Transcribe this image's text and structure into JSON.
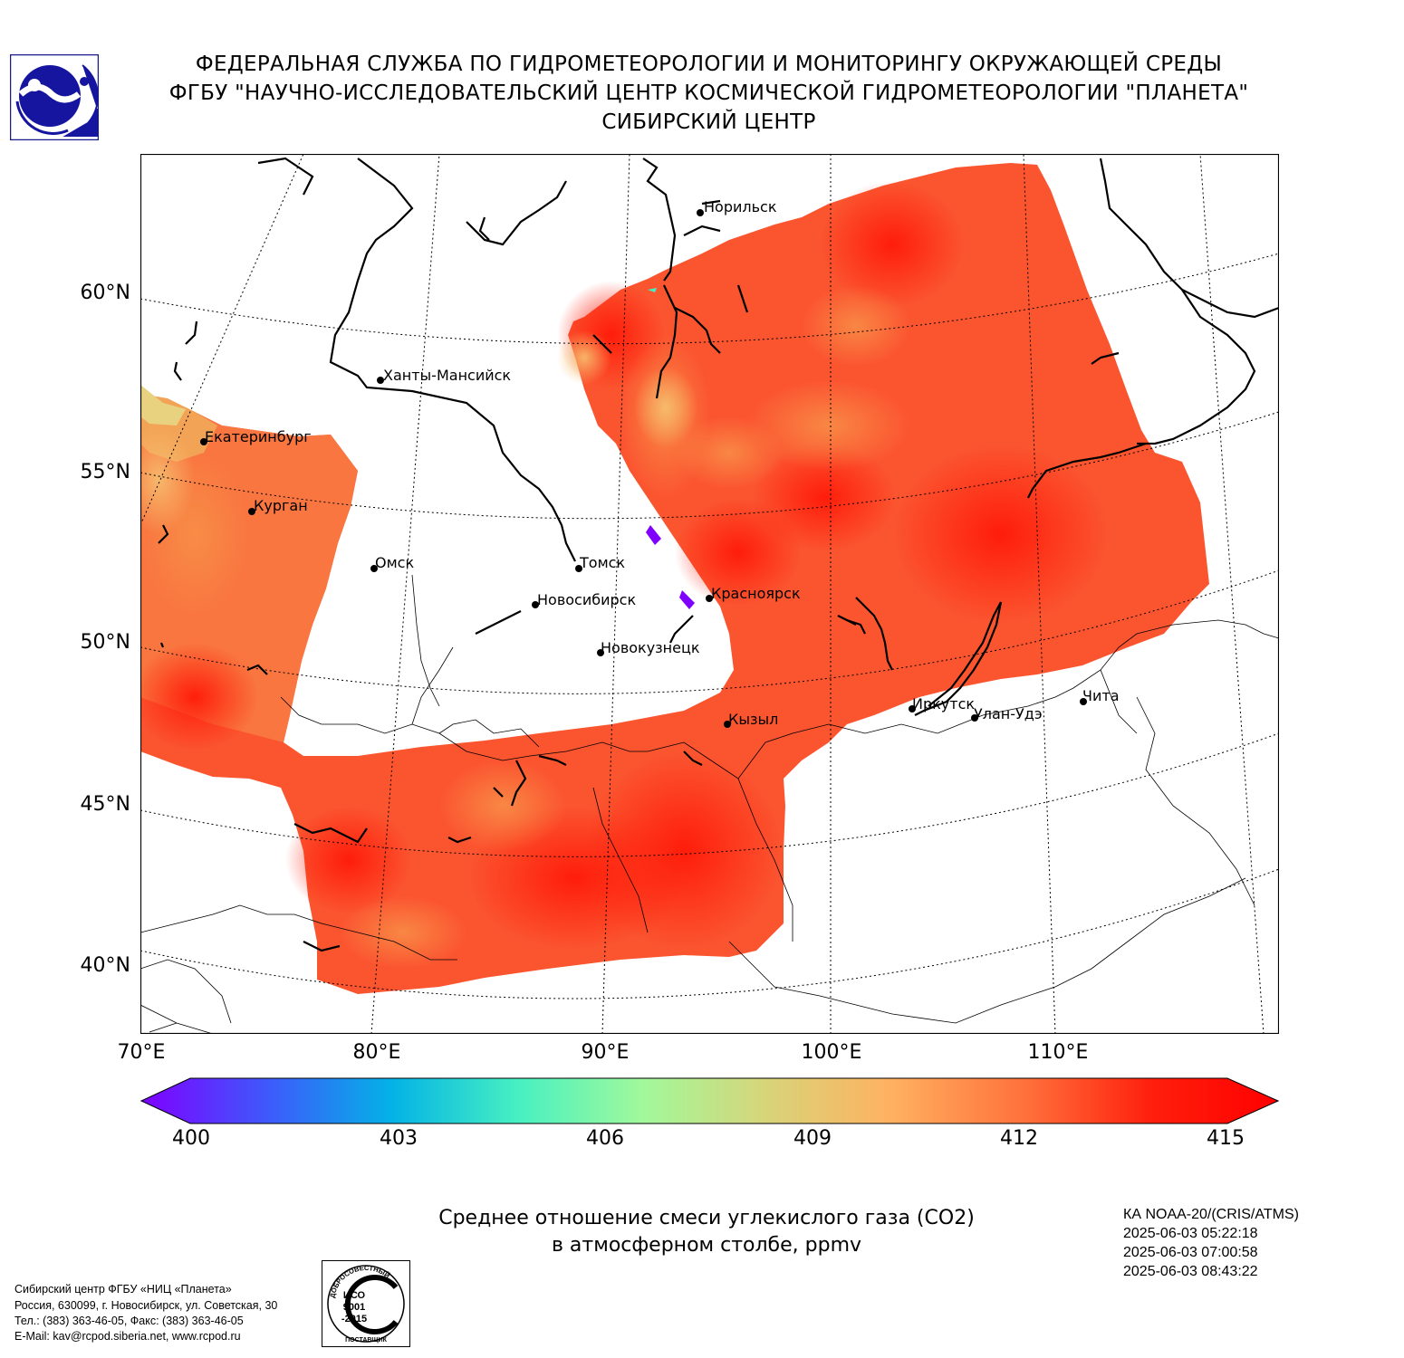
{
  "header": {
    "line1": "ФЕДЕРАЛЬНАЯ СЛУЖБА ПО ГИДРОМЕТЕОРОЛОГИИ И МОНИТОРИНГУ ОКРУЖАЮЩЕЙ СРЕДЫ",
    "line2": "ФГБУ \"НАУЧНО-ИССЛЕДОВАТЕЛЬСКИЙ ЦЕНТР КОСМИЧЕСКОЙ ГИДРОМЕТЕОРОЛОГИИ \"ПЛАНЕТА\"",
    "line3": "СИБИРСКИЙ ЦЕНТР"
  },
  "map": {
    "latitude_labels": [
      "60°N",
      "55°N",
      "50°N",
      "45°N",
      "40°N"
    ],
    "longitude_labels": [
      "70°E",
      "80°E",
      "90°E",
      "100°E",
      "110°E"
    ],
    "cities": [
      {
        "name": "Норильск"
      },
      {
        "name": "Ханты-Мансийск"
      },
      {
        "name": "Екатеринбург"
      },
      {
        "name": "Курган"
      },
      {
        "name": "Омск"
      },
      {
        "name": "Томск"
      },
      {
        "name": "Новосибирск"
      },
      {
        "name": "Красноярск"
      },
      {
        "name": "Новокузнецк"
      },
      {
        "name": "Иркутск"
      },
      {
        "name": "Улан-Удэ"
      },
      {
        "name": "Чита"
      },
      {
        "name": "Кызыл"
      }
    ],
    "colors": {
      "high": "#ff1f0a",
      "mid": "#fb5a2c",
      "low": "#f98a46",
      "edge": "#f4b45c"
    }
  },
  "colorbar": {
    "min": 400,
    "max": 415,
    "tick_labels": [
      "400",
      "403",
      "406",
      "409",
      "412",
      "415"
    ],
    "colors": [
      "#7f00ff",
      "#3f58fc",
      "#03b2e6",
      "#46f0c2",
      "#a0f99b",
      "#d8d479",
      "#ffb160",
      "#ff6f3a",
      "#ff1e0c",
      "#ff0000"
    ]
  },
  "caption": {
    "line1": "Среднее отношение смеси углекислого газа (CO2)",
    "line2": "в атмосферном столбе, ppmv"
  },
  "satellite": {
    "name": "КА NOAA-20/(CRIS/ATMS)",
    "times": [
      "2025-06-03 05:22:18",
      "2025-06-03 07:00:58",
      "2025-06-03 08:43:22"
    ]
  },
  "footer": {
    "org": "Сибирский центр ФГБУ «НИЦ «Планета»",
    "address": "Россия, 630099, г. Новосибирск, ул. Советская, 30",
    "phone": "Тел.: (383) 363-46-05, Факс: (383) 363-46-05",
    "email": "E-Mail: kav@rcpod.siberia.net, www.rcpod.ru"
  },
  "iso_badge": {
    "top_text": "ДОБРОСОВЕСТНЫЙ",
    "line1": "ИСО",
    "line2": "9001",
    "line3": "-2015",
    "bottom_text": "ПОСТАВЩИК"
  }
}
